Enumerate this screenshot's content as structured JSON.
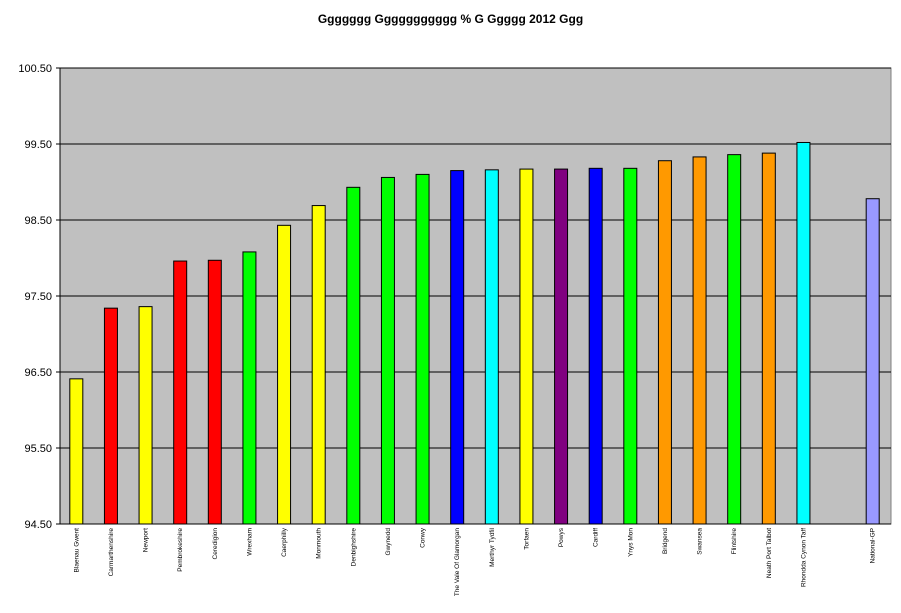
{
  "chart_data": {
    "type": "bar",
    "title": "Ggggggg Ggggggggggg % G Ggggg 2012 Ggg",
    "xlabel": "",
    "ylabel": "",
    "ylim": [
      94.5,
      100.5
    ],
    "yticks": [
      "94.50",
      "95.50",
      "96.50",
      "97.50",
      "98.50",
      "99.50",
      "100.50"
    ],
    "ytick_values": [
      94.5,
      95.5,
      96.5,
      97.5,
      98.5,
      99.5,
      100.5
    ],
    "grid": true,
    "plot_background": "#c0c0c0",
    "categories": [
      "Blaenau Gwent",
      "Carmarthenshire",
      "Newport",
      "Pembrokeshire",
      "Ceredigion",
      "Wrexham",
      "Caerphilly",
      "Monmouth",
      "Denbighshire",
      "Gwynedd",
      "Conwy",
      "The Vale Of Glamorgan",
      "Merthyr Tydfil",
      "Torfaen",
      "Powys",
      "Cardiff",
      "Ynys Mon",
      "Bridgend",
      "Swansea",
      "Flintshire",
      "Neath Port Talbot",
      "Rhondda Cynon Taff",
      "",
      "National-GP"
    ],
    "values": [
      96.41,
      97.34,
      97.36,
      97.96,
      97.97,
      98.08,
      98.43,
      98.69,
      98.93,
      99.06,
      99.1,
      99.15,
      99.16,
      99.17,
      99.17,
      99.18,
      99.18,
      99.28,
      99.33,
      99.36,
      99.38,
      99.52,
      null,
      98.78
    ],
    "colors": [
      "#ffff00",
      "#ff0000",
      "#ffff00",
      "#ff0000",
      "#ff0000",
      "#00ff00",
      "#ffff00",
      "#ffff00",
      "#00ff00",
      "#00ff00",
      "#00ff00",
      "#0000ff",
      "#00ffff",
      "#ffff00",
      "#800080",
      "#0000ff",
      "#00ff00",
      "#ff9900",
      "#ff9900",
      "#00ff00",
      "#ff9900",
      "#00ffff",
      "",
      "#9999ff"
    ]
  }
}
